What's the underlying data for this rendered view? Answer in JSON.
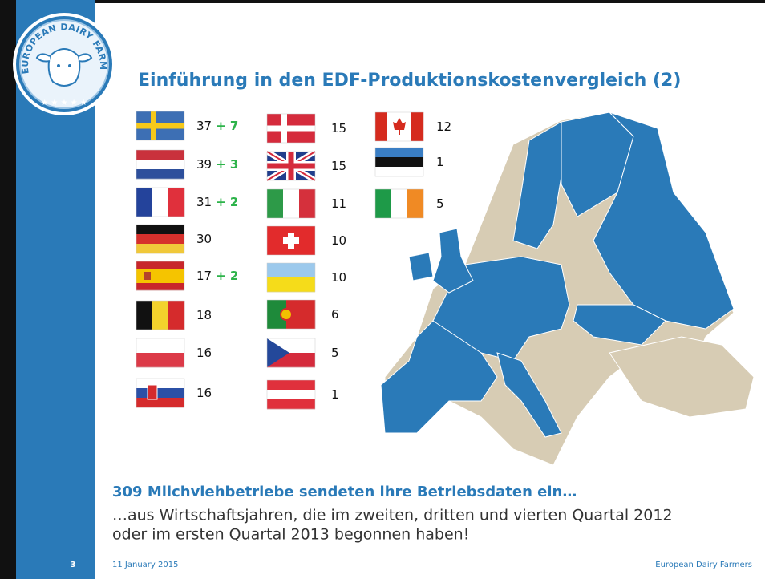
{
  "logo": {
    "text": "EUROPEAN DAIRY FARMERS"
  },
  "title": "Einführung in den EDF-Produktionskostenvergleich (2)",
  "flags": [
    [
      {
        "count": 37,
        "extra": "+ 7"
      },
      {
        "count": 39,
        "extra": "+ 3"
      },
      {
        "count": 31,
        "extra": "+ 2"
      },
      {
        "count": 30
      },
      {
        "count": 17,
        "extra": "+ 2"
      },
      {
        "count": 18
      },
      {
        "count": 16
      },
      {
        "count": 16
      }
    ],
    [
      {
        "count": 15
      },
      {
        "count": 15
      },
      {
        "count": 11
      },
      {
        "count": 10
      },
      {
        "count": 10
      },
      {
        "count": 6
      },
      {
        "count": 5
      },
      {
        "count": 1
      }
    ],
    [
      {
        "count": 12
      },
      {
        "count": 1
      },
      {
        "count": 5
      }
    ]
  ],
  "heading": "309 Milchviehbetriebe sendeten ihre Betriebsdaten ein…",
  "body": [
    "…aus Wirtschaftsjahren, die im zweiten, dritten und vierten Quartal 2012",
    "oder im ersten Quartal 2013 begonnen haben!"
  ],
  "footer": {
    "page": "3",
    "date": "11 January 2015",
    "org": "European Dairy Farmers"
  }
}
